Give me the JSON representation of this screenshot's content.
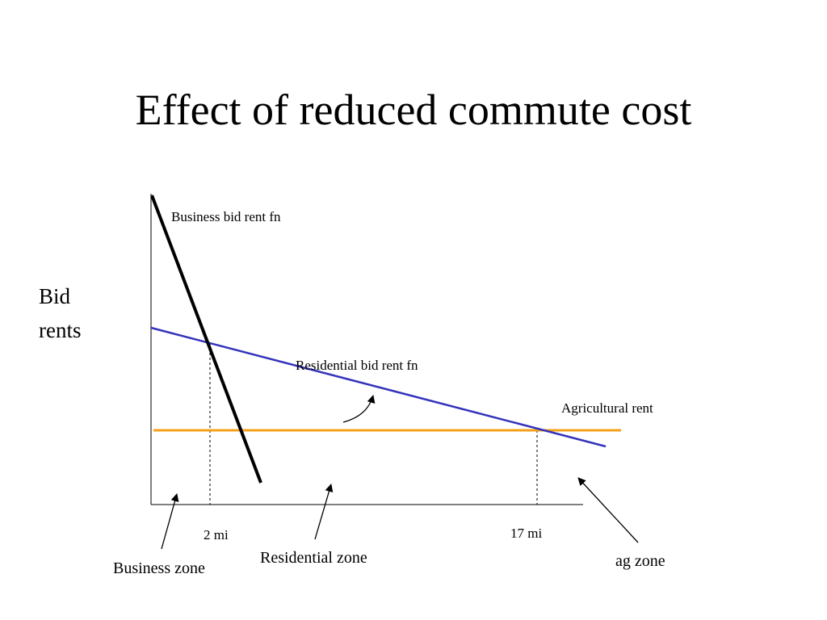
{
  "title": "Effect of reduced commute cost",
  "y_axis_label": {
    "line1": "Bid",
    "line2": "rents"
  },
  "curve_labels": {
    "business": "Business bid rent fn",
    "residential": "Residential bid rent fn",
    "agricultural": "Agricultural rent"
  },
  "x_markers": [
    "2 mi",
    "17 mi"
  ],
  "zones": {
    "business": "Business zone",
    "residential": "Residential zone",
    "ag": "ag zone"
  }
}
